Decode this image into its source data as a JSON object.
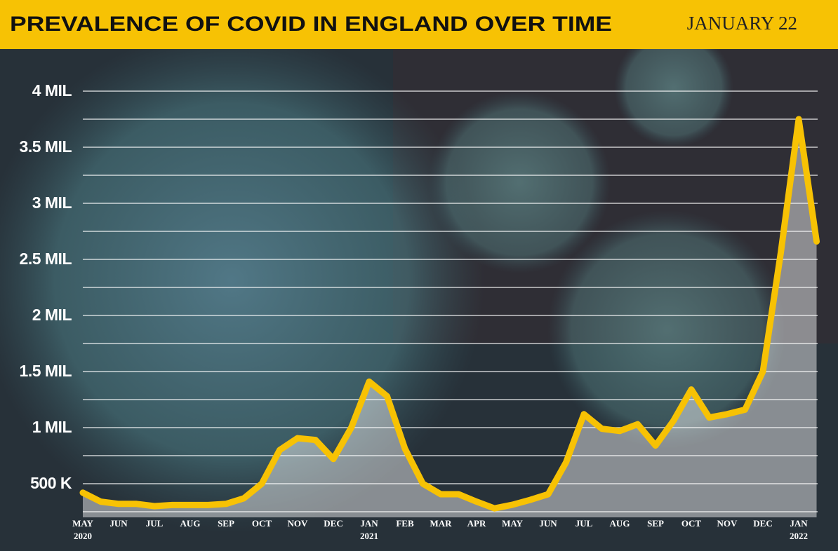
{
  "chart_data": {
    "type": "line",
    "title": "PREVALENCE OF COVID IN ENGLAND OVER TIME",
    "subtitle": "JANUARY 22",
    "categories": [
      "MAY",
      null,
      "JUN",
      null,
      "JUL",
      null,
      "AUG",
      null,
      "SEP",
      null,
      "OCT",
      null,
      "NOV",
      null,
      "DEC",
      null,
      "JAN",
      null,
      "FEB",
      null,
      "MAR",
      null,
      "APR",
      null,
      "MAY",
      null,
      "JUN",
      null,
      "JUL",
      null,
      "AUG",
      null,
      "SEP",
      null,
      "OCT",
      null,
      "NOV",
      null,
      "DEC",
      null,
      "JAN",
      null
    ],
    "years": [
      "2020",
      null,
      null,
      null,
      null,
      null,
      null,
      null,
      null,
      null,
      null,
      null,
      null,
      null,
      null,
      null,
      "2021",
      null,
      null,
      null,
      null,
      null,
      null,
      null,
      null,
      null,
      null,
      null,
      null,
      null,
      null,
      null,
      null,
      null,
      null,
      null,
      null,
      null,
      null,
      null,
      "2022",
      null
    ],
    "values": [
      420000,
      340000,
      320000,
      320000,
      300000,
      310000,
      310000,
      310000,
      320000,
      370000,
      500000,
      800000,
      906000,
      890000,
      720000,
      1000000,
      1410000,
      1280000,
      812000,
      500000,
      406000,
      406000,
      340000,
      280000,
      312000,
      356000,
      406000,
      690000,
      1120000,
      990000,
      970000,
      1030000,
      840000,
      1060000,
      1340000,
      1090000,
      1120000,
      1160000,
      1500000,
      2560000,
      3750000,
      2660000
    ],
    "color": "#f7c204",
    "ylim": [
      200000,
      4250000
    ],
    "yticks": [
      {
        "value": 500000,
        "label": "500 K"
      },
      {
        "value": 1000000,
        "label": "1 MIL"
      },
      {
        "value": 1500000,
        "label": "1.5 MIL"
      },
      {
        "value": 2000000,
        "label": "2 MIL"
      },
      {
        "value": 2500000,
        "label": "2.5 MIL"
      },
      {
        "value": 3000000,
        "label": "3 MIL"
      },
      {
        "value": 3500000,
        "label": "3.5 MIL"
      },
      {
        "value": 4000000,
        "label": "4 MIL"
      }
    ],
    "yminor_grid": [
      250000,
      750000,
      1250000,
      1750000,
      2250000,
      2750000,
      3250000,
      3750000
    ],
    "grid": true
  }
}
